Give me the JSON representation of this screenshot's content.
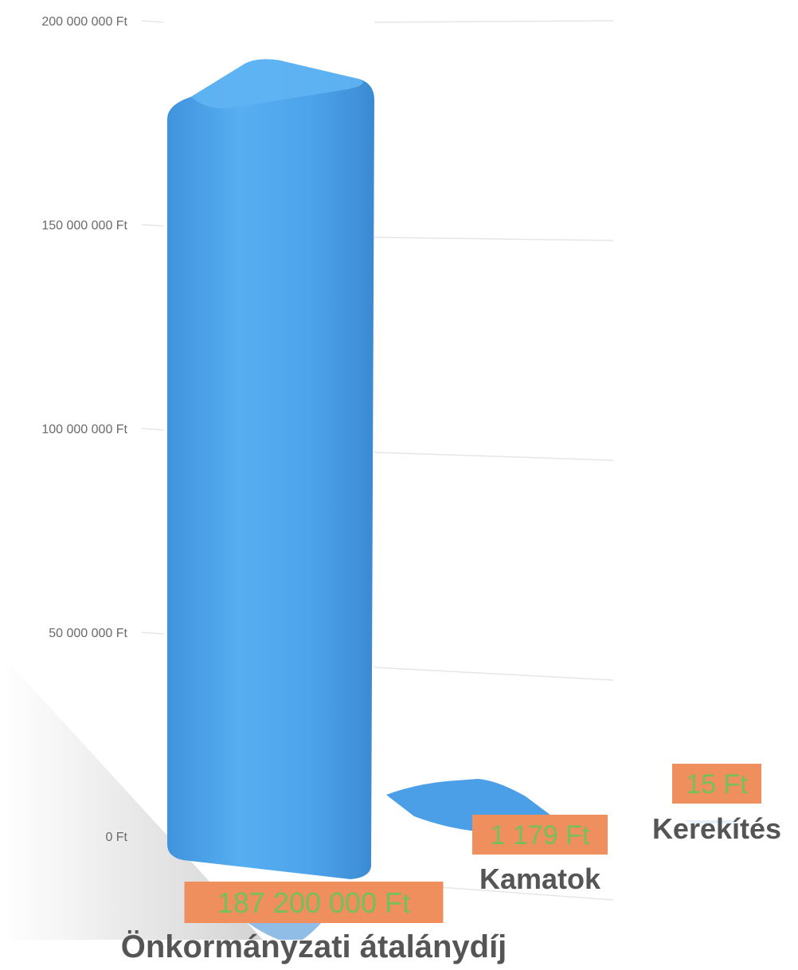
{
  "chart_data": {
    "type": "bar",
    "categories": [
      "Önkormányzati átalánydíj",
      "Kamatok",
      "Kerekítés"
    ],
    "values": [
      187200000,
      1179,
      15
    ],
    "data_labels": [
      "187 200 000 Ft",
      "1 179 Ft",
      "15 Ft"
    ],
    "y_ticks": [
      0,
      50000000,
      100000000,
      150000000,
      200000000
    ],
    "y_tick_labels": [
      "0 Ft",
      "50 000 000 Ft",
      "100 000 000 Ft",
      "150 000 000 Ft",
      "200 000 000 Ft"
    ],
    "ylim": [
      0,
      200000000
    ],
    "grid": true,
    "legend": "none",
    "colors": {
      "bar": "#4a9fe6",
      "bar_light": "#5bb0f0",
      "bar_dark": "#3587cf",
      "label_bg": "#f08f5e",
      "label_text": "#74c05a",
      "category_text": "#555555",
      "grid": "#e6e6e6",
      "tick_text": "#6a6a6a"
    }
  }
}
